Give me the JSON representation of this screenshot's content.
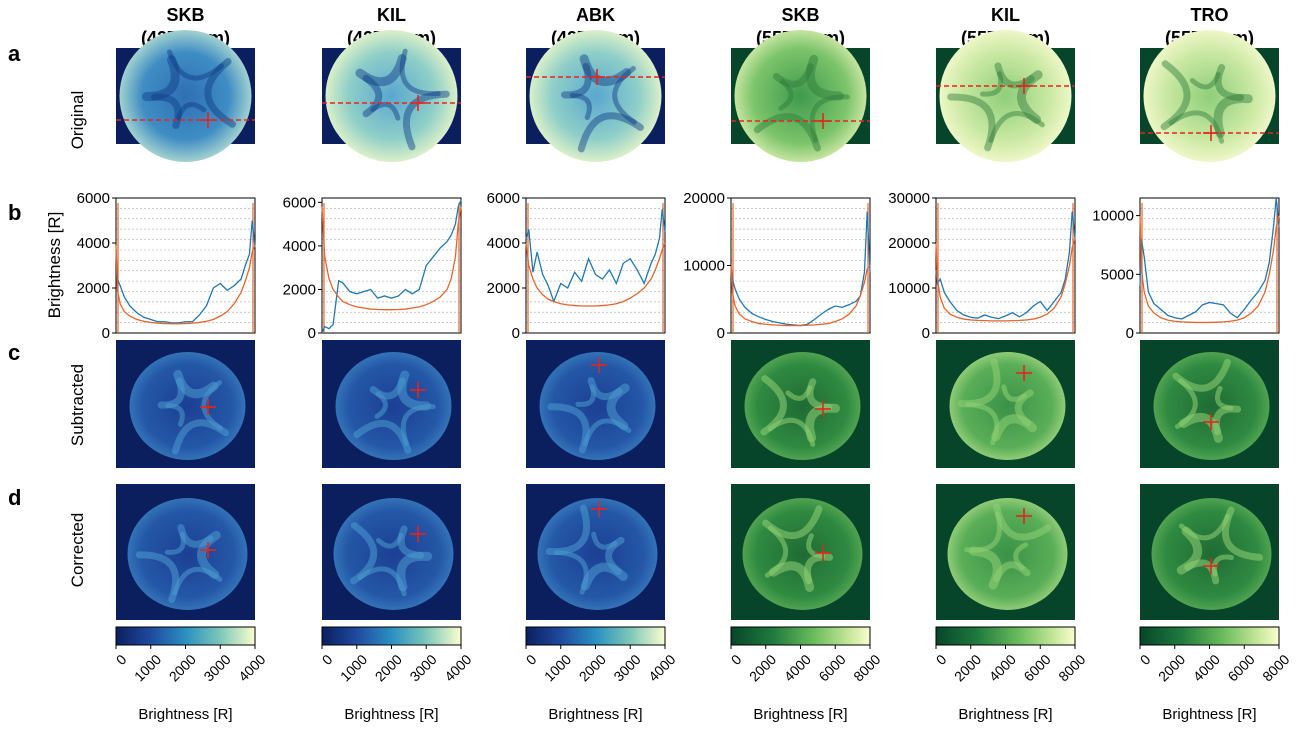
{
  "colors": {
    "blue_background": "#0b1f5e",
    "green_background": "#07452a",
    "crosshair": "#e8241c",
    "profile_line": "#1f77b4",
    "model_curve": "#e8642a"
  },
  "panel_letters": [
    "a",
    "b",
    "c",
    "d"
  ],
  "row_labels": {
    "a": "Original",
    "b": "Brightness [R]",
    "c": "Subtracted",
    "d": "Corrected"
  },
  "columns": [
    {
      "station": "SKB",
      "wavelength": "(427.8 nm)",
      "colormap": "blue",
      "b_ticks": [
        "0",
        "2000",
        "4000",
        "6000"
      ],
      "cb_ticks": [
        "0",
        "1000",
        "2000",
        "3000",
        "4000"
      ],
      "cb_label": "Brightness [R]"
    },
    {
      "station": "KIL",
      "wavelength": "(427.8 nm)",
      "colormap": "blue",
      "b_ticks": [
        "0",
        "2000",
        "4000",
        "6000"
      ],
      "cb_ticks": [
        "0",
        "1000",
        "2000",
        "3000",
        "4000"
      ],
      "cb_label": "Brightness [R]"
    },
    {
      "station": "ABK",
      "wavelength": "(427.8 nm)",
      "colormap": "blue",
      "b_ticks": [
        "0",
        "2000",
        "4000",
        "6000"
      ],
      "cb_ticks": [
        "0",
        "1000",
        "2000",
        "3000",
        "4000"
      ],
      "cb_label": "Brightness [R]"
    },
    {
      "station": "SKB",
      "wavelength": "(557.7 nm)",
      "colormap": "green",
      "b_ticks": [
        "0",
        "10000",
        "20000"
      ],
      "cb_ticks": [
        "0",
        "2000",
        "4000",
        "6000",
        "8000"
      ],
      "cb_label": "Brightness [R]"
    },
    {
      "station": "KIL",
      "wavelength": "(557.7 nm)",
      "colormap": "green",
      "b_ticks": [
        "0",
        "10000",
        "20000",
        "30000"
      ],
      "cb_ticks": [
        "0",
        "2000",
        "4000",
        "6000",
        "8000"
      ],
      "cb_label": "Brightness [R]"
    },
    {
      "station": "TRO",
      "wavelength": "(557.7 nm)",
      "colormap": "green",
      "b_ticks": [
        "0",
        "5000",
        "10000"
      ],
      "cb_ticks": [
        "0",
        "2000",
        "4000",
        "6000",
        "8000"
      ],
      "cb_label": "Brightness [R]"
    }
  ],
  "chart_data": [
    {
      "type": "line",
      "panel": "b-SKB-427.8",
      "ylim": [
        0,
        6000
      ],
      "x": [
        0,
        0.01,
        0.03,
        0.06,
        0.1,
        0.15,
        0.2,
        0.25,
        0.3,
        0.35,
        0.4,
        0.45,
        0.5,
        0.55,
        0.6,
        0.65,
        0.7,
        0.75,
        0.8,
        0.85,
        0.9,
        0.93,
        0.96,
        0.98,
        1
      ],
      "series": [
        {
          "values": [
            3700,
            2400,
            2100,
            1600,
            1200,
            900,
            700,
            600,
            500,
            500,
            450,
            450,
            500,
            500,
            800,
            1200,
            2000,
            2200,
            1900,
            2100,
            2400,
            3000,
            3500,
            5000,
            3800
          ]
        },
        {
          "values": [
            3900,
            1900,
            1300,
            950,
            750,
            600,
            520,
            470,
            440,
            420,
            410,
            410,
            420,
            440,
            470,
            520,
            600,
            750,
            950,
            1300,
            1800,
            2300,
            2900,
            3600,
            3900
          ]
        }
      ]
    },
    {
      "type": "line",
      "panel": "b-KIL-427.8",
      "ylim": [
        0,
        6200
      ],
      "x": [
        0,
        0.02,
        0.05,
        0.08,
        0.12,
        0.15,
        0.2,
        0.25,
        0.3,
        0.35,
        0.4,
        0.45,
        0.5,
        0.55,
        0.6,
        0.65,
        0.7,
        0.75,
        0.8,
        0.85,
        0.9,
        0.93,
        0.96,
        0.98,
        1
      ],
      "series": [
        {
          "values": [
            0,
            300,
            200,
            400,
            2400,
            2300,
            1900,
            1800,
            1900,
            2000,
            1600,
            1700,
            1600,
            1700,
            2000,
            1800,
            2000,
            3100,
            3500,
            3900,
            4200,
            4500,
            5000,
            5800,
            6100
          ]
        },
        {
          "values": [
            5800,
            3500,
            2500,
            2000,
            1650,
            1450,
            1300,
            1200,
            1150,
            1100,
            1080,
            1070,
            1070,
            1080,
            1100,
            1150,
            1200,
            1300,
            1450,
            1650,
            2000,
            2500,
            3500,
            5000,
            5800
          ]
        }
      ]
    },
    {
      "type": "line",
      "panel": "b-ABK-427.8",
      "ylim": [
        0,
        6000
      ],
      "x": [
        0,
        0.02,
        0.05,
        0.08,
        0.12,
        0.16,
        0.2,
        0.25,
        0.3,
        0.35,
        0.4,
        0.45,
        0.5,
        0.55,
        0.6,
        0.65,
        0.7,
        0.75,
        0.8,
        0.85,
        0.9,
        0.93,
        0.96,
        0.98,
        1
      ],
      "series": [
        {
          "values": [
            4200,
            4600,
            2700,
            3600,
            2600,
            2100,
            1400,
            2200,
            2000,
            2700,
            2300,
            3300,
            2600,
            2400,
            2800,
            2200,
            3100,
            3300,
            2800,
            2200,
            3100,
            3500,
            4200,
            5500,
            4500
          ]
        },
        {
          "values": [
            4000,
            3000,
            2400,
            2000,
            1700,
            1500,
            1400,
            1300,
            1250,
            1220,
            1200,
            1200,
            1200,
            1220,
            1250,
            1300,
            1400,
            1550,
            1750,
            2000,
            2400,
            2800,
            3300,
            3700,
            4000
          ]
        }
      ]
    },
    {
      "type": "line",
      "panel": "b-SKB-557.7",
      "ylim": [
        0,
        20000
      ],
      "x": [
        0,
        0.01,
        0.03,
        0.06,
        0.1,
        0.15,
        0.2,
        0.25,
        0.3,
        0.35,
        0.4,
        0.45,
        0.5,
        0.55,
        0.6,
        0.65,
        0.7,
        0.75,
        0.8,
        0.85,
        0.9,
        0.93,
        0.96,
        0.98,
        1
      ],
      "series": [
        {
          "values": [
            10000,
            8000,
            6500,
            5000,
            3800,
            2900,
            2400,
            2000,
            1700,
            1500,
            1300,
            1200,
            1100,
            1300,
            2000,
            2800,
            3500,
            4000,
            3800,
            4200,
            4700,
            5500,
            9000,
            18000,
            9000
          ]
        },
        {
          "values": [
            10000,
            6000,
            4000,
            2800,
            2100,
            1700,
            1400,
            1300,
            1200,
            1150,
            1100,
            1100,
            1100,
            1150,
            1200,
            1300,
            1400,
            1700,
            2100,
            2800,
            4000,
            5500,
            7500,
            9500,
            10000
          ]
        }
      ]
    },
    {
      "type": "line",
      "panel": "b-KIL-557.7",
      "ylim": [
        0,
        30000
      ],
      "x": [
        0,
        0.01,
        0.03,
        0.06,
        0.1,
        0.15,
        0.2,
        0.25,
        0.3,
        0.35,
        0.4,
        0.45,
        0.5,
        0.55,
        0.6,
        0.65,
        0.7,
        0.75,
        0.8,
        0.85,
        0.9,
        0.93,
        0.96,
        0.98,
        1
      ],
      "series": [
        {
          "values": [
            14000,
            11000,
            12000,
            9000,
            7000,
            5000,
            4000,
            3500,
            3300,
            4000,
            3500,
            3200,
            3800,
            4500,
            3600,
            4500,
            6000,
            7000,
            5000,
            7000,
            9000,
            12000,
            18000,
            27000,
            21000
          ]
        },
        {
          "values": [
            20000,
            12000,
            8000,
            5500,
            4200,
            3500,
            3100,
            2900,
            2800,
            2750,
            2700,
            2700,
            2700,
            2750,
            2800,
            2900,
            3100,
            3500,
            4200,
            5500,
            8000,
            11000,
            15000,
            19000,
            21000
          ]
        }
      ]
    },
    {
      "type": "line",
      "panel": "b-TRO-557.7",
      "ylim": [
        0,
        11500
      ],
      "x": [
        0,
        0.01,
        0.03,
        0.06,
        0.1,
        0.15,
        0.2,
        0.25,
        0.3,
        0.35,
        0.4,
        0.45,
        0.5,
        0.55,
        0.6,
        0.65,
        0.7,
        0.75,
        0.8,
        0.85,
        0.9,
        0.93,
        0.96,
        0.98,
        1
      ],
      "series": [
        {
          "values": [
            4000,
            8000,
            6500,
            3500,
            2500,
            2000,
            1500,
            1300,
            1200,
            1500,
            1800,
            2400,
            2600,
            2500,
            2400,
            1700,
            1300,
            2000,
            2800,
            3500,
            4500,
            6000,
            9000,
            11500,
            9000
          ]
        },
        {
          "values": [
            10000,
            5500,
            3500,
            2300,
            1700,
            1300,
            1100,
            1000,
            950,
            920,
            900,
            900,
            900,
            920,
            950,
            1000,
            1100,
            1300,
            1700,
            2300,
            3500,
            5000,
            7000,
            9000,
            10000
          ]
        }
      ]
    }
  ]
}
